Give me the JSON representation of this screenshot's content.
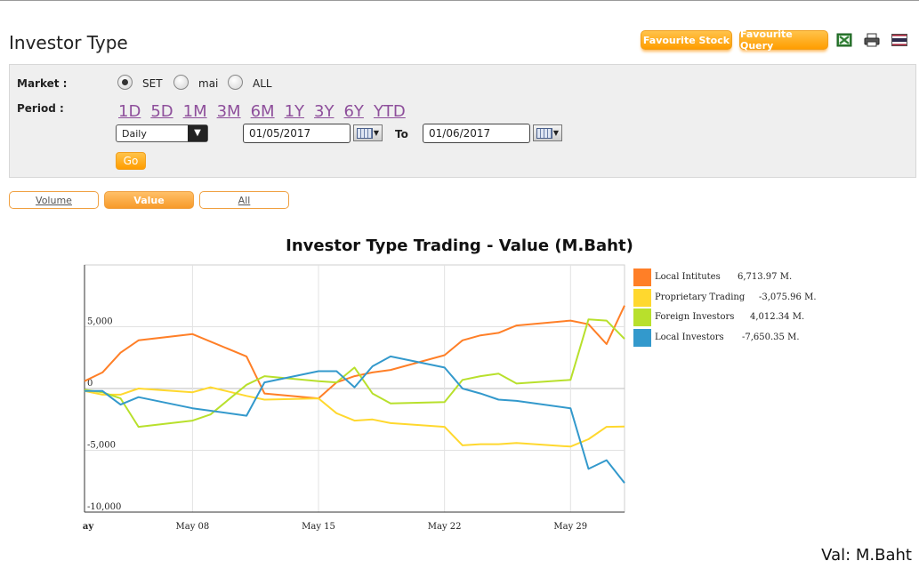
{
  "page": {
    "title": "Investor Type",
    "favourite_stock": "Favourite Stock",
    "favourite_query": "Favourite Query"
  },
  "icons": [
    "excel-icon",
    "printer-icon",
    "thai-flag-icon"
  ],
  "filters": {
    "market_label": "Market :",
    "markets": [
      "SET",
      "mai",
      "ALL"
    ],
    "market_selected": "SET",
    "period_label": "Period :",
    "periods": [
      "1D",
      "5D",
      "1M",
      "3M",
      "6M",
      "1Y",
      "3Y",
      "6Y",
      "YTD"
    ],
    "frequency": "Daily",
    "date_from": "01/05/2017",
    "to_label": "To",
    "date_to": "01/06/2017",
    "go": "Go"
  },
  "tabs": {
    "volume": "Volume",
    "value": "Value",
    "all": "All",
    "active": "Value"
  },
  "unit_note": "Val: M.Baht",
  "colors": {
    "local_institutes": "#ff7f27",
    "proprietary_trading": "#ffd82e",
    "foreign_investors": "#b8e02c",
    "local_investors": "#3399cc",
    "accent": "#ff9d00"
  },
  "chart_data": {
    "type": "line",
    "title": "Investor Type Trading - Value (M.Baht)",
    "xlabel": "",
    "ylabel": "",
    "x": [
      "2017-05-02",
      "2017-05-03",
      "2017-05-04",
      "2017-05-05",
      "2017-05-08",
      "2017-05-09",
      "2017-05-11",
      "2017-05-12",
      "2017-05-15",
      "2017-05-16",
      "2017-05-17",
      "2017-05-18",
      "2017-05-19",
      "2017-05-22",
      "2017-05-23",
      "2017-05-24",
      "2017-05-25",
      "2017-05-26",
      "2017-05-29",
      "2017-05-30",
      "2017-05-31",
      "2017-06-01"
    ],
    "x_tick_labels": [
      "ay",
      "May 08",
      "May 15",
      "May 22",
      "May 29"
    ],
    "y_ticks": [
      5000,
      0,
      -5000,
      -10000
    ],
    "y_tick_labels": [
      "5,000",
      "0",
      "-5,000",
      "-10,000"
    ],
    "ylim": [
      -10000,
      10000
    ],
    "grid": true,
    "legend_position": "right",
    "series": [
      {
        "name": "Local Intitutes",
        "legend_value": "6,713.97 M.",
        "values": [
          600,
          1300,
          2900,
          3900,
          4400,
          3800,
          2600,
          -400,
          -800,
          500,
          1000,
          1300,
          1500,
          2700,
          3900,
          4300,
          4500,
          5100,
          5500,
          5200,
          3600,
          6714
        ]
      },
      {
        "name": "Proprietary Trading",
        "legend_value": "-3,075.96 M.",
        "values": [
          -200,
          -500,
          -500,
          0,
          -300,
          100,
          -600,
          -900,
          -800,
          -2000,
          -2600,
          -2500,
          -2800,
          -3100,
          -4600,
          -4500,
          -4500,
          -4400,
          -4700,
          -4100,
          -3100,
          -3076
        ]
      },
      {
        "name": "Foreign Investors",
        "legend_value": "4,012.34 M.",
        "values": [
          -100,
          -300,
          -800,
          -3100,
          -2600,
          -2100,
          300,
          1000,
          600,
          500,
          1700,
          -400,
          -1200,
          -1100,
          700,
          1000,
          1200,
          400,
          700,
          5600,
          5500,
          4012
        ]
      },
      {
        "name": "Local Investors",
        "legend_value": "-7,650.35 M.",
        "values": [
          -200,
          -200,
          -1300,
          -700,
          -1600,
          -1800,
          -2200,
          500,
          1400,
          1400,
          100,
          1800,
          2600,
          1700,
          0,
          -400,
          -900,
          -1000,
          -1600,
          -6500,
          -5800,
          -7650
        ]
      }
    ]
  }
}
